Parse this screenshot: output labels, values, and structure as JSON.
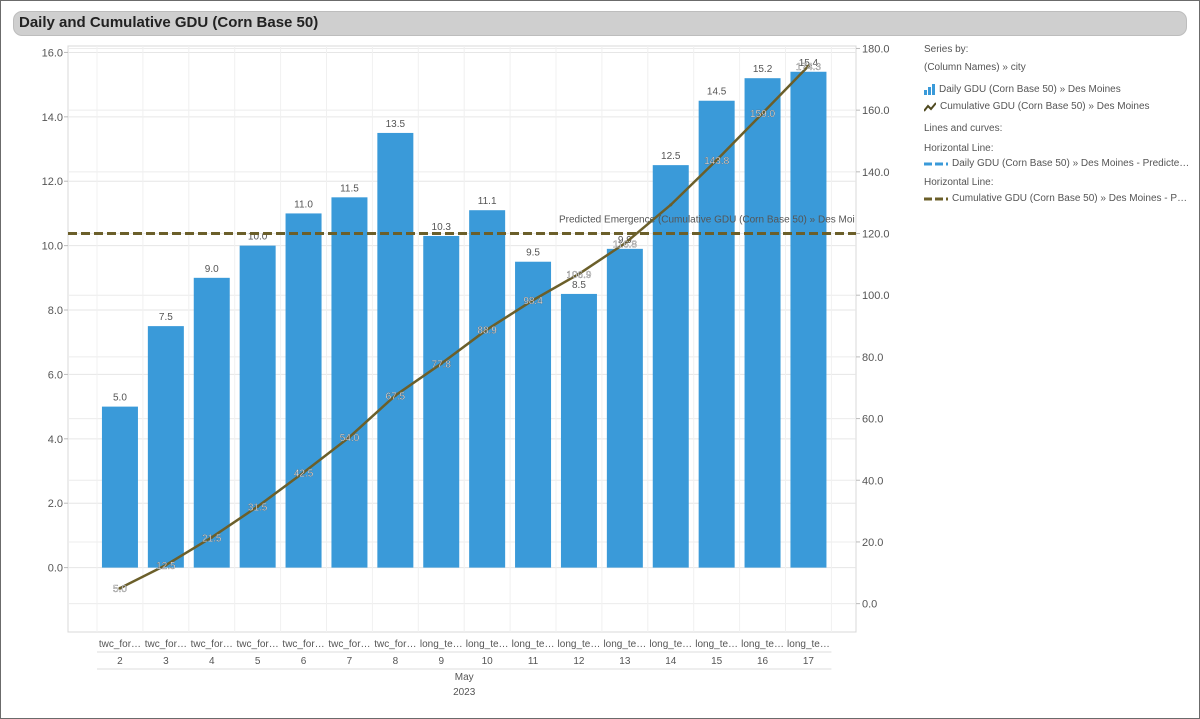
{
  "title": "Daily and Cumulative GDU (Corn Base 50)",
  "legend": {
    "series_by": "Series by:",
    "column_path": "(Column Names)  »  city",
    "items": [
      {
        "label": "Daily GDU (Corn Base 50) » Des Moines",
        "icon": "bar-chart-icon"
      },
      {
        "label": "Cumulative GDU (Corn Base 50) » Des Moines",
        "icon": "line-chart-icon"
      }
    ],
    "lines_header": "Lines and curves:",
    "horizontal_lines": [
      {
        "header": "Horizontal Line:",
        "label": "Daily GDU (Corn Base 50) » Des Moines - Predicte…"
      },
      {
        "header": "Horizontal Line:",
        "label": "Cumulative GDU (Corn Base 50) » Des Moines - P…"
      }
    ]
  },
  "colors": {
    "bar": "#3a9ad9",
    "line": "#6b5f2a",
    "ref_line": "#6b5f2a",
    "ref_line_light": "#3a9ad9"
  },
  "chart_data": {
    "type": "bar",
    "title": "Daily and Cumulative GDU (Corn Base 50)",
    "categories": [
      {
        "source": "twc_for…",
        "day": "2"
      },
      {
        "source": "twc_for…",
        "day": "3"
      },
      {
        "source": "twc_for…",
        "day": "4"
      },
      {
        "source": "twc_for…",
        "day": "5"
      },
      {
        "source": "twc_for…",
        "day": "6"
      },
      {
        "source": "twc_for…",
        "day": "7"
      },
      {
        "source": "twc_for…",
        "day": "8"
      },
      {
        "source": "long_te…",
        "day": "9"
      },
      {
        "source": "long_te…",
        "day": "10"
      },
      {
        "source": "long_te…",
        "day": "11"
      },
      {
        "source": "long_te…",
        "day": "12"
      },
      {
        "source": "long_te…",
        "day": "13"
      },
      {
        "source": "long_te…",
        "day": "14"
      },
      {
        "source": "long_te…",
        "day": "15"
      },
      {
        "source": "long_te…",
        "day": "16"
      },
      {
        "source": "long_te…",
        "day": "17"
      }
    ],
    "month": "May",
    "year": "2023",
    "series": [
      {
        "name": "Daily GDU (Corn Base 50) » Des Moines",
        "type": "bar",
        "axis": "left",
        "values": [
          5.0,
          7.5,
          9.0,
          10.0,
          11.0,
          11.5,
          13.5,
          10.3,
          11.1,
          9.5,
          8.5,
          9.9,
          12.5,
          14.5,
          15.2,
          15.4
        ],
        "labels": [
          "5.0",
          "7.5",
          "9.0",
          "10.0",
          "11.0",
          "11.5",
          "13.5",
          "10.3",
          "11.1",
          "9.5",
          "8.5",
          "9.9",
          "12.5",
          "14.5",
          "15.2",
          "15.4"
        ]
      },
      {
        "name": "Cumulative GDU (Corn Base 50) » Des Moines",
        "type": "line",
        "axis": "right",
        "values": [
          5.0,
          12.5,
          21.5,
          31.5,
          42.5,
          54.0,
          67.5,
          77.8,
          88.9,
          98.4,
          106.9,
          116.8,
          129.3,
          143.8,
          159.0,
          174.3
        ],
        "labels": [
          "5.0",
          "12.5",
          "21.5",
          "31.5",
          "42.5",
          "54.0",
          "67.5",
          "77.8",
          "88.9",
          "98.4",
          "106.9",
          "116.8",
          "",
          "143.8",
          "159.0",
          "174.3"
        ]
      }
    ],
    "y_left": {
      "min": -2,
      "max": 16.2,
      "ticks": [
        "0.0",
        "2.0",
        "4.0",
        "6.0",
        "8.0",
        "10.0",
        "12.0",
        "14.0",
        "16.0"
      ],
      "tick_values": [
        0,
        2,
        4,
        6,
        8,
        10,
        12,
        14,
        16
      ]
    },
    "y_right": {
      "min": -9.2,
      "max": 180.8,
      "ticks": [
        "0.0",
        "20.0",
        "40.0",
        "60.0",
        "80.0",
        "100.0",
        "120.0",
        "140.0",
        "160.0",
        "180.0"
      ],
      "tick_values": [
        0,
        20,
        40,
        60,
        80,
        100,
        120,
        140,
        160,
        180
      ]
    },
    "reference_lines": [
      {
        "axis": "right",
        "value": 120,
        "label": "Predicted Emergence (Cumulative GDU (Corn Base 50) » Des Moi"
      }
    ]
  }
}
